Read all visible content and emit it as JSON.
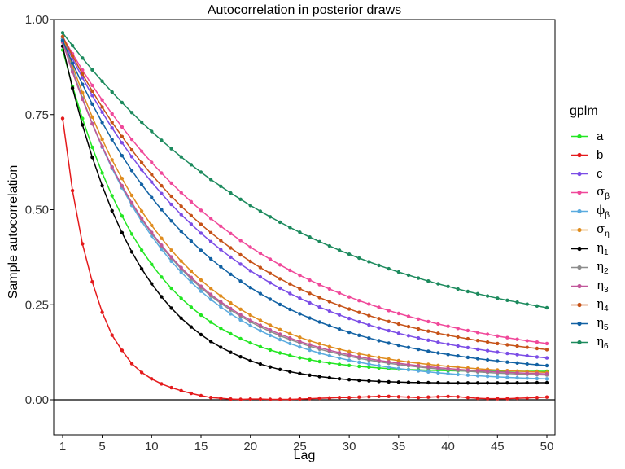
{
  "chart_data": {
    "type": "line",
    "title": "Autocorrelation in posterior draws",
    "xlabel": "Lag",
    "ylabel": "Sample autocorrelation",
    "xlim": [
      1,
      50
    ],
    "ylim": [
      -0.1,
      1.0
    ],
    "x_ticks": [
      1,
      5,
      10,
      15,
      20,
      25,
      30,
      35,
      40,
      45,
      50
    ],
    "y_ticks": [
      0.0,
      0.25,
      0.5,
      0.75,
      1.0
    ],
    "y_tick_labels": [
      "0.00",
      "0.25",
      "0.50",
      "0.75",
      "1.00"
    ],
    "grid": false,
    "reference_line_y": 0,
    "legend": {
      "title": "gplm",
      "position": "right"
    },
    "series": [
      {
        "name": "a",
        "symbol": "a",
        "sub": "",
        "color": "#22e622",
        "v1": 0.92,
        "v50": 0.075,
        "mode": "exp",
        "rate": 0.117,
        "baseline": 0.03
      },
      {
        "name": "b",
        "symbol": "b",
        "sub": "",
        "color": "#e41a1c",
        "mode": "explicit",
        "values": [
          0.74,
          0.55,
          0.41,
          0.31,
          0.23,
          0.17,
          0.13,
          0.095,
          0.072,
          0.055,
          0.042,
          0.032,
          0.024,
          0.017,
          0.011,
          0.006,
          0.004,
          0.002,
          0.001,
          0.002,
          0.002,
          0.001,
          0.001,
          0.001,
          0.002,
          0.003,
          0.004,
          0.005,
          0.006,
          0.006,
          0.007,
          0.008,
          0.009,
          0.009,
          0.008,
          0.007,
          0.006,
          0.007,
          0.008,
          0.009,
          0.008,
          0.006,
          0.004,
          0.003,
          0.003,
          0.003,
          0.004,
          0.005,
          0.006,
          0.007
        ]
      },
      {
        "name": "c",
        "symbol": "c",
        "sub": "",
        "color": "#7b4ce6",
        "v1": 0.95,
        "v50": 0.11,
        "mode": "exp",
        "rate": 0.062,
        "baseline": 0.0
      },
      {
        "name": "σβ",
        "symbol": "σ",
        "sub": "β",
        "color": "#f0489a",
        "v1": 0.955,
        "v50": 0.148,
        "mode": "exp",
        "rate": 0.053,
        "baseline": 0.0
      },
      {
        "name": "ϕβ",
        "symbol": "ϕ",
        "sub": "β",
        "color": "#5aabdf",
        "v1": 0.95,
        "v50": 0.055,
        "mode": "exp",
        "rate": 0.095,
        "baseline": 0.0
      },
      {
        "name": "ση",
        "symbol": "σ",
        "sub": "η",
        "color": "#df8c1e",
        "v1": 0.955,
        "v50": 0.072,
        "mode": "exp",
        "rate": 0.09,
        "baseline": 0.0
      },
      {
        "name": "η1",
        "symbol": "η",
        "sub": "1",
        "color": "#000000",
        "v1": 0.93,
        "v50": 0.045,
        "mode": "exp",
        "rate": 0.13,
        "baseline": 0.035
      },
      {
        "name": "η2",
        "symbol": "η",
        "sub": "2",
        "color": "#8c8c8c",
        "v1": 0.945,
        "v50": 0.065,
        "mode": "exp",
        "rate": 0.094,
        "baseline": 0.0
      },
      {
        "name": "η3",
        "symbol": "η",
        "sub": "3",
        "color": "#c1569a",
        "v1": 0.94,
        "v50": 0.068,
        "mode": "exp",
        "rate": 0.093,
        "baseline": 0.0
      },
      {
        "name": "η4",
        "symbol": "η",
        "sub": "4",
        "color": "#c65217",
        "v1": 0.955,
        "v50": 0.132,
        "mode": "exp",
        "rate": 0.06,
        "baseline": 0.0
      },
      {
        "name": "η5",
        "symbol": "η",
        "sub": "5",
        "color": "#1161a3",
        "v1": 0.945,
        "v50": 0.09,
        "mode": "exp",
        "rate": 0.07,
        "baseline": 0.0
      },
      {
        "name": "η6",
        "symbol": "η",
        "sub": "6",
        "color": "#1c8a5d",
        "v1": 0.965,
        "v50": 0.242,
        "mode": "exp",
        "rate": 0.0415,
        "baseline": 0.0
      }
    ]
  }
}
